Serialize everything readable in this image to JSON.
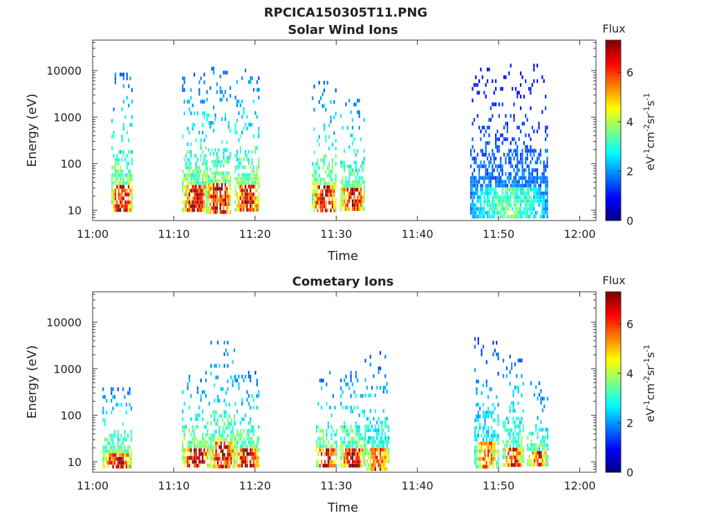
{
  "figure_title": "RPCICA150305T11.PNG",
  "chart_data": [
    {
      "type": "heatmap",
      "title": "Solar Wind Ions",
      "xlabel": "Time",
      "ylabel": "Energy (eV)",
      "y_scale": "log",
      "ylim": [
        6,
        45000
      ],
      "xlim": [
        "11:00",
        "12:02"
      ],
      "x_ticks": [
        "11:00",
        "11:10",
        "11:20",
        "11:30",
        "11:40",
        "11:50",
        "12:00"
      ],
      "y_ticks": [
        "10",
        "100",
        "1000",
        "10000"
      ],
      "colorbar": {
        "title": "Flux",
        "label": "eV-1cm-2sr-1s-1",
        "range": [
          0,
          7.3
        ],
        "ticks": [
          "0",
          "2",
          "4",
          "6"
        ],
        "colormap": "jet"
      },
      "bursts": [
        {
          "t_start": 2.3,
          "t_end": 4.8,
          "e_low": 10,
          "e_high": 9000,
          "peak": 7.0
        },
        {
          "t_start": 11.0,
          "t_end": 14.0,
          "e_low": 10,
          "e_high": 9000,
          "peak": 7.0
        },
        {
          "t_start": 14.0,
          "t_end": 17.0,
          "e_low": 10,
          "e_high": 12000,
          "peak": 7.0
        },
        {
          "t_start": 17.5,
          "t_end": 20.5,
          "e_low": 10,
          "e_high": 11000,
          "peak": 7.0
        },
        {
          "t_start": 27.0,
          "t_end": 30.0,
          "e_low": 10,
          "e_high": 6000,
          "peak": 7.0
        },
        {
          "t_start": 30.5,
          "t_end": 33.5,
          "e_low": 10,
          "e_high": 3000,
          "peak": 7.0
        },
        {
          "t_start": 46.5,
          "t_end": 56.0,
          "e_low": 8,
          "e_high": 14000,
          "peak": 3.5
        }
      ]
    },
    {
      "type": "heatmap",
      "title": "Cometary Ions",
      "xlabel": "Time",
      "ylabel": "Energy (eV)",
      "y_scale": "log",
      "ylim": [
        6,
        45000
      ],
      "xlim": [
        "11:00",
        "12:02"
      ],
      "x_ticks": [
        "11:00",
        "11:10",
        "11:20",
        "11:30",
        "11:40",
        "11:50",
        "12:00"
      ],
      "y_ticks": [
        "10",
        "100",
        "1000",
        "10000"
      ],
      "colorbar": {
        "title": "Flux",
        "label": "eV-1cm-2sr-1s-1",
        "range": [
          0,
          7.3
        ],
        "ticks": [
          "0",
          "2",
          "4",
          "6"
        ],
        "colormap": "jet"
      },
      "bursts": [
        {
          "t_start": 1.2,
          "t_end": 4.8,
          "e_low": 8,
          "e_high": 400,
          "peak": 7.0
        },
        {
          "t_start": 11.0,
          "t_end": 14.5,
          "e_low": 8,
          "e_high": 900,
          "peak": 7.0
        },
        {
          "t_start": 14.5,
          "t_end": 17.5,
          "e_low": 8,
          "e_high": 4000,
          "peak": 7.0
        },
        {
          "t_start": 17.5,
          "t_end": 20.5,
          "e_low": 8,
          "e_high": 900,
          "peak": 7.0
        },
        {
          "t_start": 27.5,
          "t_end": 30.0,
          "e_low": 8,
          "e_high": 900,
          "peak": 7.0
        },
        {
          "t_start": 30.5,
          "t_end": 33.5,
          "e_low": 8,
          "e_high": 900,
          "peak": 7.0
        },
        {
          "t_start": 33.5,
          "t_end": 36.5,
          "e_low": 7,
          "e_high": 2400,
          "peak": 6.0
        },
        {
          "t_start": 47.0,
          "t_end": 50.0,
          "e_low": 8,
          "e_high": 4800,
          "peak": 5.5
        },
        {
          "t_start": 50.5,
          "t_end": 53.0,
          "e_low": 8,
          "e_high": 2000,
          "peak": 6.5
        },
        {
          "t_start": 53.5,
          "t_end": 56.0,
          "e_low": 8,
          "e_high": 650,
          "peak": 6.5
        }
      ]
    }
  ]
}
